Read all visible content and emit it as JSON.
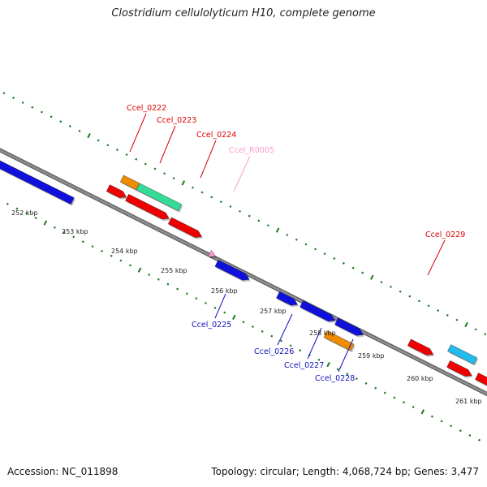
{
  "title": "Clostridium cellulolyticum H10, complete genome",
  "footer": {
    "accession": "Accession: NC_011898",
    "stats": "Topology: circular; Length: 4,068,724 bp; Genes: 3,477"
  },
  "colors": {
    "backbone": "#8c8c8c",
    "ticks": "#1a7a1a",
    "cds_red": "#ee0000",
    "cds_blue": "#1010dd",
    "cds_orange": "#f08c00",
    "cds_green": "#33dd99",
    "cds_cyan": "#22bbee",
    "rna_pink": "#ff99cc",
    "label_red": "#dd0000",
    "label_blue": "#1111bb",
    "label_pink": "#ff99cc"
  },
  "kbp_labels": [
    "252 kbp",
    "253 kbp",
    "254 kbp",
    "255 kbp",
    "256 kbp",
    "257 kbp",
    "258 kbp",
    "259 kbp",
    "260 kbp",
    "261 kbp"
  ],
  "gene_labels": [
    {
      "text": "Ccel_0222",
      "color": "label_red"
    },
    {
      "text": "Ccel_0223",
      "color": "label_red"
    },
    {
      "text": "Ccel_0224",
      "color": "label_red"
    },
    {
      "text": "Ccel_R0005",
      "color": "label_pink"
    },
    {
      "text": "Ccel_0229",
      "color": "label_red"
    },
    {
      "text": "Ccel_0225",
      "color": "label_blue"
    },
    {
      "text": "Ccel_0226",
      "color": "label_blue"
    },
    {
      "text": "Ccel_0227",
      "color": "label_blue"
    },
    {
      "text": "Ccel_0228",
      "color": "label_blue"
    }
  ],
  "features": [
    {
      "type": "cds",
      "color": "cds_blue"
    },
    {
      "type": "cds",
      "color": "cds_orange"
    },
    {
      "type": "cds",
      "color": "cds_green"
    },
    {
      "type": "cds",
      "color": "cds_red"
    },
    {
      "type": "cds",
      "color": "cds_red"
    },
    {
      "type": "cds",
      "color": "cds_red"
    },
    {
      "type": "rna",
      "color": "rna_pink"
    },
    {
      "type": "cds",
      "color": "cds_blue"
    },
    {
      "type": "cds",
      "color": "cds_blue"
    },
    {
      "type": "cds",
      "color": "cds_blue"
    },
    {
      "type": "cds",
      "color": "cds_blue"
    },
    {
      "type": "cds",
      "color": "cds_orange"
    },
    {
      "type": "cds",
      "color": "cds_red"
    },
    {
      "type": "cds",
      "color": "cds_cyan"
    },
    {
      "type": "cds",
      "color": "cds_red"
    },
    {
      "type": "cds",
      "color": "cds_red"
    }
  ]
}
